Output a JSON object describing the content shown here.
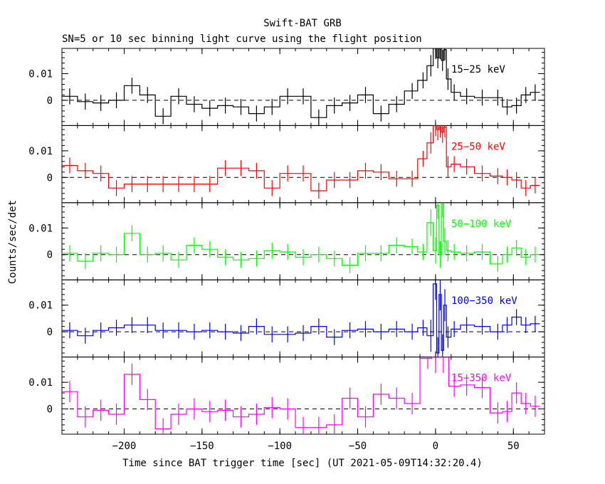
{
  "title": "Swift-BAT GRB",
  "subtitle": "SN=5 or 10 sec binning light curve using the flight position",
  "xlabel": "Time since BAT trigger time [sec] (UT 2021-05-09T14:32:20.4)",
  "ylabel": "Counts/sec/det",
  "chart_data": {
    "type": "line",
    "xlim": [
      -240,
      70
    ],
    "ylim": [
      -0.0095,
      0.0195
    ],
    "x_ticks": [
      -200,
      -150,
      -100,
      -50,
      0,
      50
    ],
    "x_tick_labels": [
      "−200",
      "−150",
      "−100",
      "−50",
      "0",
      "50"
    ],
    "y_ticks": [
      0,
      0.01
    ],
    "y_tick_labels": [
      "0",
      "0.01"
    ],
    "zero_line": "dashed",
    "series": [
      {
        "name": "15−25 keV",
        "color": "#000000",
        "x": [
          -235,
          -225,
          -215,
          -205,
          -195,
          -185,
          -175,
          -165,
          -155,
          -145,
          -135,
          -125,
          -115,
          -105,
          -95,
          -85,
          -75,
          -65,
          -55,
          -45,
          -35,
          -25,
          -15,
          -8,
          -3,
          0,
          1.5,
          3,
          4.5,
          6,
          8,
          12,
          20,
          30,
          40,
          46,
          52,
          58,
          64
        ],
        "y": [
          0.0015,
          -0.0005,
          -0.001,
          0.0,
          0.0055,
          0.002,
          -0.006,
          0.0015,
          -0.0015,
          -0.003,
          -0.002,
          -0.0025,
          -0.005,
          -0.0025,
          0.0015,
          0.0015,
          -0.0065,
          -0.002,
          -0.001,
          0.002,
          -0.005,
          -0.0015,
          0.0035,
          0.0075,
          0.013,
          0.0195,
          0.016,
          0.0195,
          0.015,
          0.019,
          0.008,
          0.003,
          0.0015,
          0.001,
          0.001,
          -0.0025,
          -0.002,
          0.002,
          0.003
        ],
        "err": [
          0.003,
          0.003,
          0.003,
          0.003,
          0.003,
          0.003,
          0.003,
          0.003,
          0.003,
          0.003,
          0.003,
          0.003,
          0.003,
          0.003,
          0.003,
          0.003,
          0.003,
          0.003,
          0.003,
          0.003,
          0.003,
          0.003,
          0.003,
          0.003,
          0.004,
          0.004,
          0.004,
          0.004,
          0.004,
          0.004,
          0.004,
          0.003,
          0.003,
          0.003,
          0.003,
          0.003,
          0.003,
          0.003,
          0.003
        ]
      },
      {
        "name": "25−50 keV",
        "color": "#ff0000",
        "x": [
          -235,
          -225,
          -215,
          -205,
          -195,
          -185,
          -175,
          -165,
          -155,
          -145,
          -135,
          -125,
          -115,
          -105,
          -95,
          -85,
          -75,
          -65,
          -55,
          -45,
          -35,
          -25,
          -15,
          -8,
          -3,
          0,
          1.5,
          3,
          4.5,
          6,
          8,
          12,
          20,
          30,
          40,
          46,
          52,
          58,
          64
        ],
        "y": [
          0.0045,
          0.0025,
          0.0015,
          -0.004,
          -0.0025,
          -0.0025,
          -0.0025,
          -0.0025,
          -0.0025,
          -0.0025,
          0.0035,
          0.0035,
          0.0025,
          -0.004,
          0.0015,
          0.0015,
          -0.005,
          -0.001,
          -0.001,
          0.0025,
          0.002,
          -0.0005,
          -0.0005,
          0.007,
          0.013,
          0.0195,
          0.018,
          0.019,
          0.017,
          0.019,
          0.004,
          0.005,
          0.004,
          0.0015,
          0.0005,
          0.0,
          -0.001,
          -0.004,
          -0.003
        ],
        "err": [
          0.003,
          0.003,
          0.003,
          0.003,
          0.003,
          0.003,
          0.003,
          0.003,
          0.003,
          0.003,
          0.003,
          0.003,
          0.003,
          0.003,
          0.003,
          0.003,
          0.003,
          0.003,
          0.003,
          0.003,
          0.003,
          0.003,
          0.003,
          0.003,
          0.004,
          0.004,
          0.004,
          0.004,
          0.004,
          0.004,
          0.004,
          0.003,
          0.003,
          0.003,
          0.003,
          0.003,
          0.003,
          0.003,
          0.003
        ]
      },
      {
        "name": "50−100 keV",
        "color": "#00ff00",
        "x": [
          -235,
          -225,
          -215,
          -205,
          -195,
          -185,
          -175,
          -165,
          -155,
          -145,
          -135,
          -125,
          -115,
          -105,
          -95,
          -85,
          -75,
          -65,
          -55,
          -45,
          -35,
          -25,
          -15,
          -8,
          -3,
          0,
          1.5,
          3,
          4.5,
          6,
          8,
          12,
          20,
          30,
          40,
          46,
          52,
          58,
          64
        ],
        "y": [
          0.0005,
          -0.0025,
          0.0005,
          0.0,
          0.008,
          0.0,
          0.0005,
          -0.002,
          0.0035,
          0.002,
          -0.001,
          -0.002,
          -0.0015,
          0.0015,
          0.001,
          -0.001,
          0.0,
          -0.0015,
          -0.004,
          0.0005,
          0.0005,
          0.0035,
          0.003,
          0.001,
          0.012,
          0.0015,
          0.0185,
          0.0,
          0.019,
          0.005,
          0.0015,
          0.001,
          0.0005,
          0.001,
          -0.0035,
          0.0,
          0.0025,
          -0.001,
          0.0
        ],
        "err": [
          0.003,
          0.003,
          0.003,
          0.003,
          0.003,
          0.003,
          0.003,
          0.003,
          0.003,
          0.003,
          0.003,
          0.003,
          0.003,
          0.003,
          0.003,
          0.003,
          0.003,
          0.003,
          0.003,
          0.003,
          0.003,
          0.003,
          0.003,
          0.003,
          0.005,
          0.005,
          0.005,
          0.005,
          0.005,
          0.005,
          0.004,
          0.003,
          0.003,
          0.003,
          0.003,
          0.003,
          0.003,
          0.003,
          0.003
        ]
      },
      {
        "name": "100−350 keV",
        "color": "#0000ff",
        "x": [
          -235,
          -225,
          -215,
          -205,
          -195,
          -185,
          -175,
          -165,
          -155,
          -145,
          -135,
          -125,
          -115,
          -105,
          -95,
          -85,
          -75,
          -65,
          -55,
          -45,
          -35,
          -25,
          -15,
          -8,
          -3,
          0,
          1.5,
          3,
          4.5,
          6,
          8,
          12,
          20,
          30,
          40,
          46,
          52,
          58,
          64
        ],
        "y": [
          0.0005,
          -0.0015,
          0.0005,
          0.0015,
          0.0025,
          0.0025,
          0.0005,
          0.0005,
          0.0,
          0.0005,
          0.0,
          -0.0005,
          0.002,
          -0.001,
          -0.001,
          -0.0005,
          0.002,
          -0.002,
          0.0005,
          0.001,
          0.0,
          0.001,
          0.0,
          0.0015,
          -0.0015,
          0.018,
          -0.008,
          0.014,
          -0.007,
          0.01,
          -0.002,
          0.001,
          0.0025,
          0.002,
          0.0,
          0.0025,
          0.0055,
          0.0025,
          0.003
        ],
        "err": [
          0.003,
          0.003,
          0.003,
          0.003,
          0.003,
          0.003,
          0.003,
          0.003,
          0.003,
          0.003,
          0.003,
          0.003,
          0.003,
          0.003,
          0.003,
          0.003,
          0.003,
          0.003,
          0.003,
          0.003,
          0.003,
          0.003,
          0.003,
          0.003,
          0.006,
          0.006,
          0.006,
          0.006,
          0.006,
          0.006,
          0.004,
          0.003,
          0.003,
          0.003,
          0.003,
          0.003,
          0.003,
          0.003,
          0.003
        ]
      },
      {
        "name": "15−350 keV",
        "color": "#ff00ff",
        "x": [
          -235,
          -225,
          -215,
          -205,
          -195,
          -185,
          -175,
          -165,
          -155,
          -145,
          -135,
          -125,
          -115,
          -105,
          -95,
          -85,
          -75,
          -65,
          -55,
          -45,
          -35,
          -25,
          -15,
          -5,
          0,
          5,
          12,
          20,
          30,
          40,
          46,
          52,
          58,
          64
        ],
        "y": [
          0.0065,
          -0.003,
          -0.0005,
          -0.002,
          0.013,
          0.0035,
          -0.0075,
          -0.002,
          0.0,
          -0.001,
          -0.0005,
          -0.003,
          -0.002,
          0.0005,
          0.0,
          -0.007,
          -0.007,
          -0.006,
          0.004,
          -0.003,
          0.0055,
          0.004,
          0.002,
          0.019,
          0.0195,
          0.0195,
          0.0085,
          0.009,
          0.008,
          -0.0015,
          -0.001,
          0.006,
          0.002,
          0.001
        ],
        "err": [
          0.004,
          0.004,
          0.004,
          0.004,
          0.004,
          0.004,
          0.004,
          0.004,
          0.004,
          0.004,
          0.004,
          0.004,
          0.004,
          0.004,
          0.004,
          0.004,
          0.004,
          0.004,
          0.004,
          0.004,
          0.004,
          0.004,
          0.004,
          0.004,
          0.006,
          0.006,
          0.004,
          0.004,
          0.004,
          0.004,
          0.004,
          0.004,
          0.004,
          0.004
        ]
      }
    ]
  }
}
